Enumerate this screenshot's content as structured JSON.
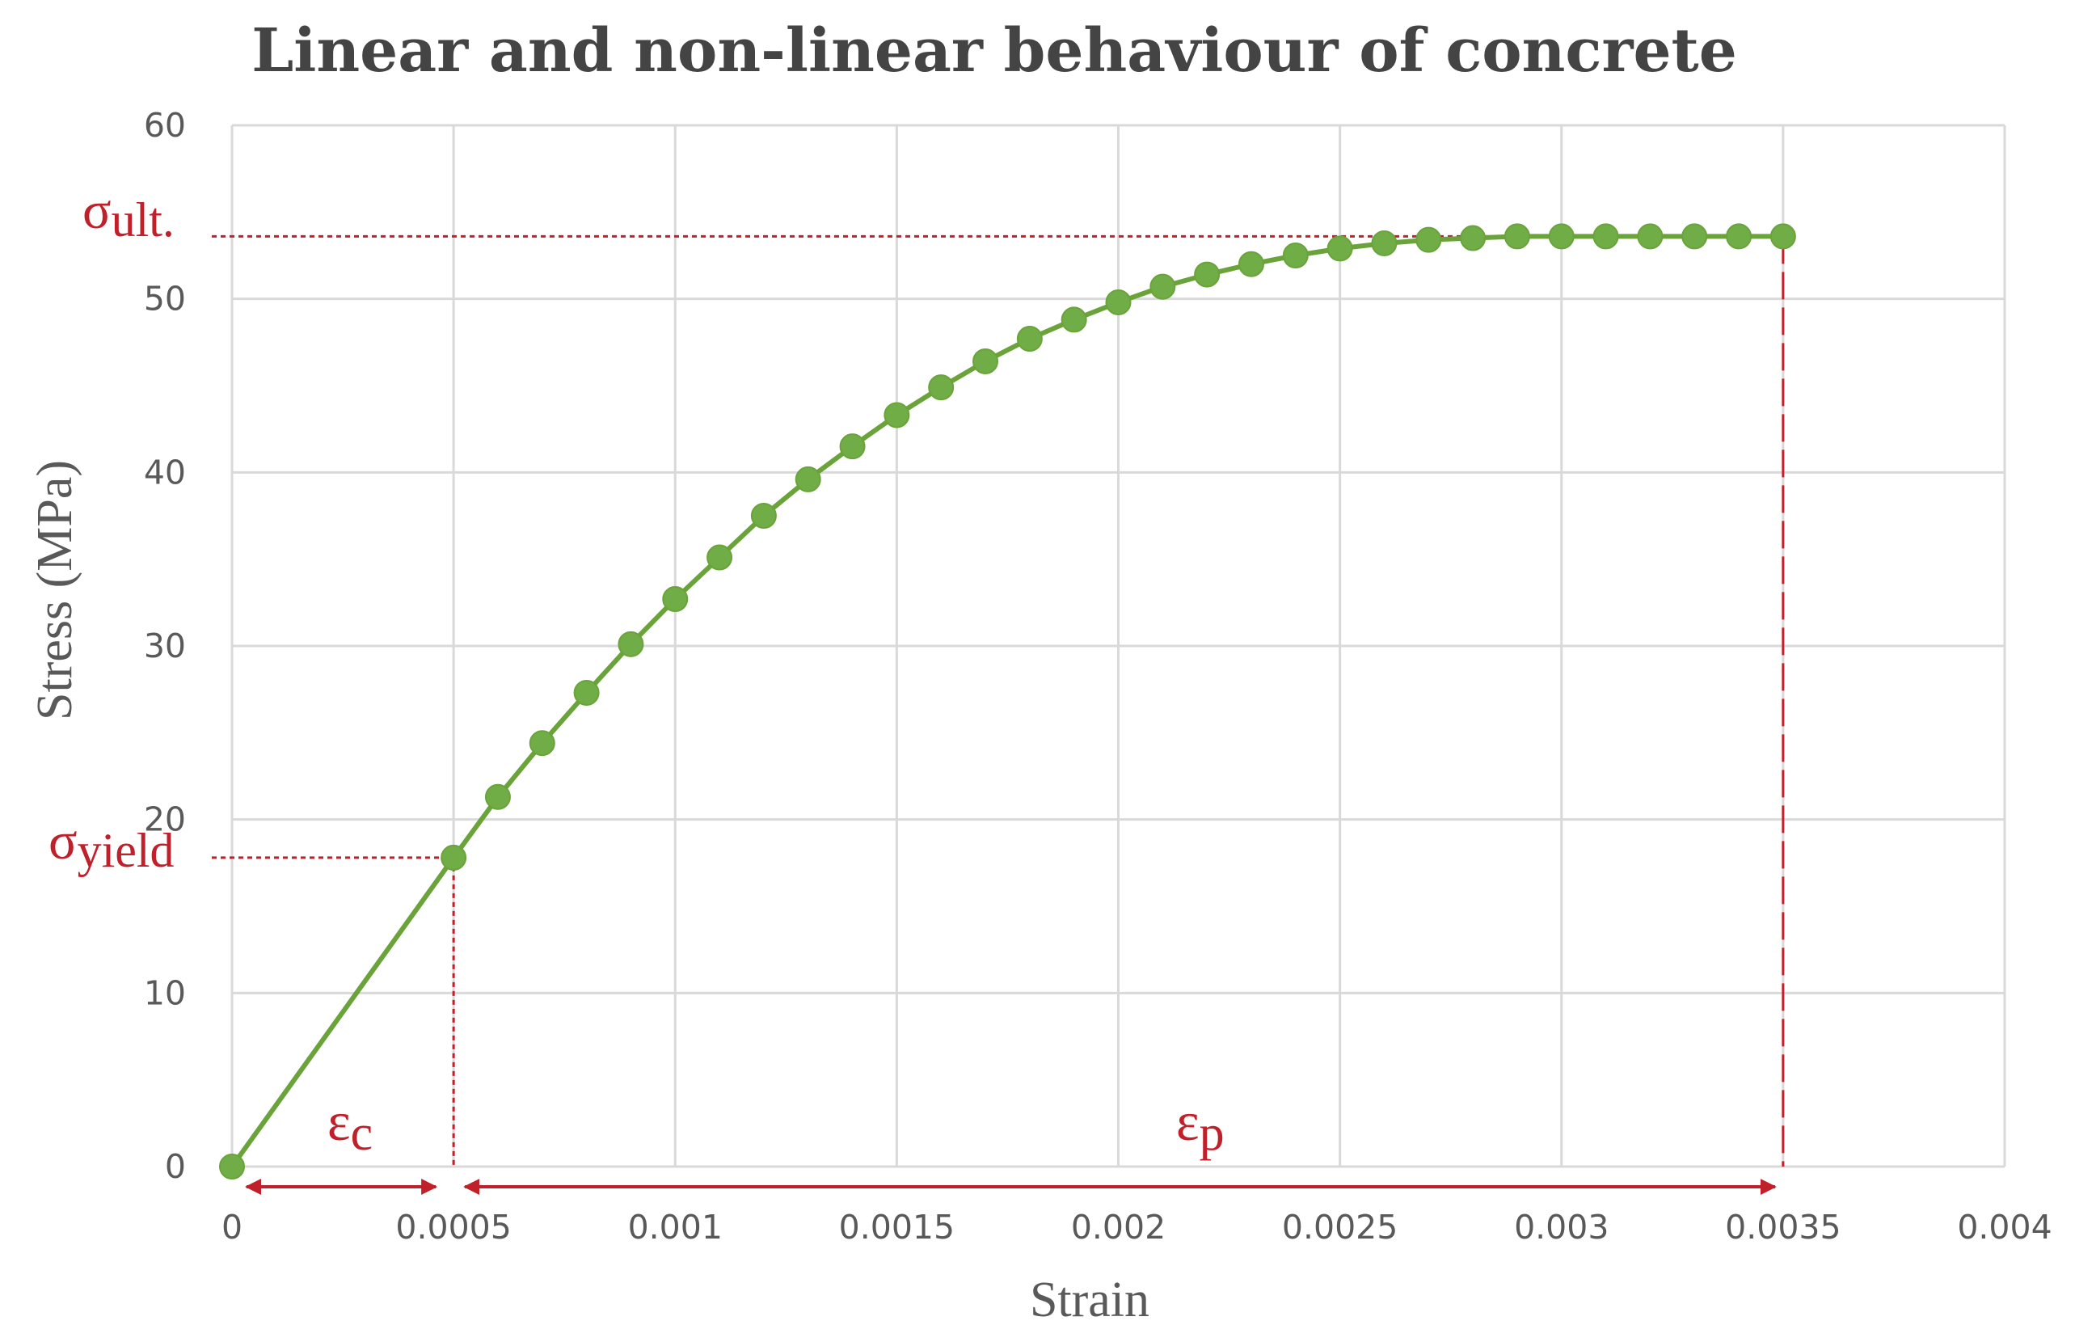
{
  "chart_data": {
    "type": "line",
    "title": "Linear and non-linear behaviour of concrete",
    "xlabel": "Strain",
    "ylabel": "Stress (MPa)",
    "xlim": [
      0,
      0.004
    ],
    "ylim": [
      0,
      60
    ],
    "x_ticks": [
      "0",
      "0.0005",
      "0.001",
      "0.0015",
      "0.002",
      "0.0025",
      "0.003",
      "0.0035",
      "0.004"
    ],
    "y_ticks": [
      "0",
      "10",
      "20",
      "30",
      "40",
      "50",
      "60"
    ],
    "grid": true,
    "series": [
      {
        "color": "#6aa33a",
        "marker_color": "#70ad47",
        "x": [
          0,
          0.0005,
          0.0006,
          0.0007,
          0.0008,
          0.0009,
          0.001,
          0.0011,
          0.0012,
          0.0013,
          0.0014,
          0.0015,
          0.0016,
          0.0017,
          0.0018,
          0.0019,
          0.002,
          0.0021,
          0.0022,
          0.0023,
          0.0024,
          0.0025,
          0.0026,
          0.0027,
          0.0028,
          0.0029,
          0.003,
          0.0031,
          0.0032,
          0.0033,
          0.0034,
          0.0035
        ],
        "y": [
          0,
          17.8,
          21.3,
          24.4,
          27.3,
          30.1,
          32.7,
          35.1,
          37.5,
          39.6,
          41.5,
          43.3,
          44.9,
          46.4,
          47.7,
          48.8,
          49.8,
          50.7,
          51.4,
          52.0,
          52.5,
          52.9,
          53.2,
          53.4,
          53.5,
          53.6,
          53.6,
          53.6,
          53.6,
          53.6,
          53.6,
          53.6
        ]
      }
    ],
    "annotations": {
      "color": "#c0202a",
      "sigma_ult": {
        "symbol": "σ",
        "sub": "ult.",
        "stress": 53.6
      },
      "sigma_yield": {
        "symbol": "σ",
        "sub": "yield",
        "stress": 17.8
      },
      "eps_c": {
        "symbol": "ε",
        "sub": "c",
        "from": 0,
        "to": 0.0005
      },
      "eps_p": {
        "symbol": "ε",
        "sub": "p",
        "from": 0.0005,
        "to": 0.0035
      }
    }
  }
}
